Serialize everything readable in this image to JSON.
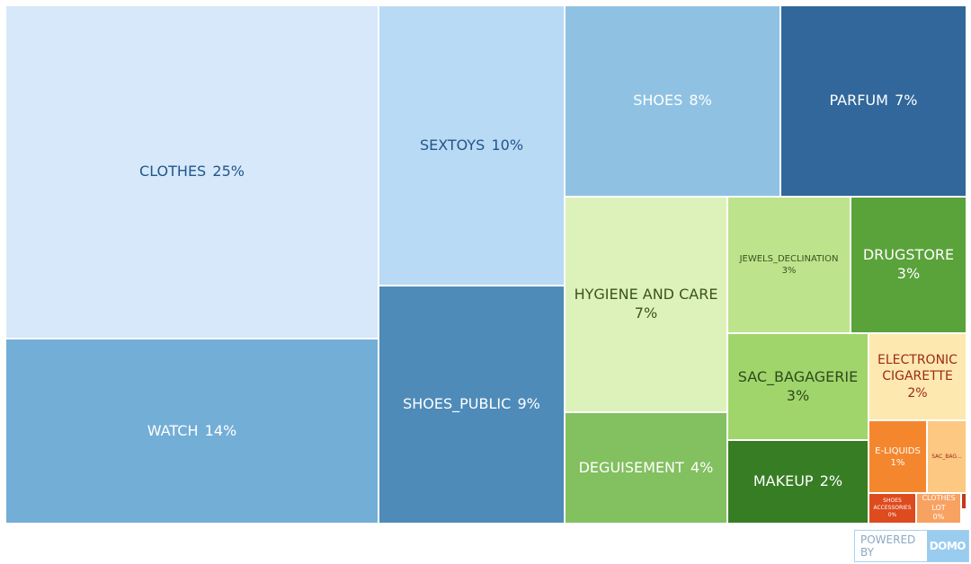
{
  "chart_data": {
    "type": "treemap",
    "categories": [
      "CLOTHES",
      "WATCH",
      "SEXTOYS",
      "SHOES_PUBLIC",
      "SHOES",
      "PARFUM",
      "HYGIENE AND CARE",
      "DEGUISEMENT",
      "JEWELS_DECLINATION",
      "DRUGSTORE",
      "SAC_BAGAGERIE",
      "MAKEUP",
      "ELECTRONIC CIGARETTE",
      "E-LIQUIDS",
      "SAC_BAG...",
      "SHOES ACCESSORIES",
      "CLOTHES LOT",
      null
    ],
    "values": [
      25,
      14,
      10,
      9,
      8,
      7,
      7,
      4,
      3,
      3,
      3,
      2,
      2,
      1,
      0.3,
      0,
      0,
      0.1
    ],
    "value_labels": [
      "25%",
      "14%",
      "10%",
      "9%",
      "8%",
      "7%",
      "7%",
      "4%",
      "3%",
      "3%",
      "3%",
      "2%",
      "2%",
      "1%",
      null,
      "0%",
      "0%",
      null
    ],
    "colors": [
      "#d6e8fa",
      "#73aed6",
      "#b8daf4",
      "#4e8bb9",
      "#8fc2e2",
      "#31679b",
      "#ddf2bb",
      "#83c060",
      "#bde38c",
      "#5aa23a",
      "#a0d56c",
      "#377d24",
      "#fde8b0",
      "#f4872e",
      "#fcc882",
      "#dd4b1e",
      "#f8a262",
      "#c0391b"
    ]
  },
  "footer": {
    "powered_by": "POWERED BY",
    "brand": "DOMO"
  }
}
